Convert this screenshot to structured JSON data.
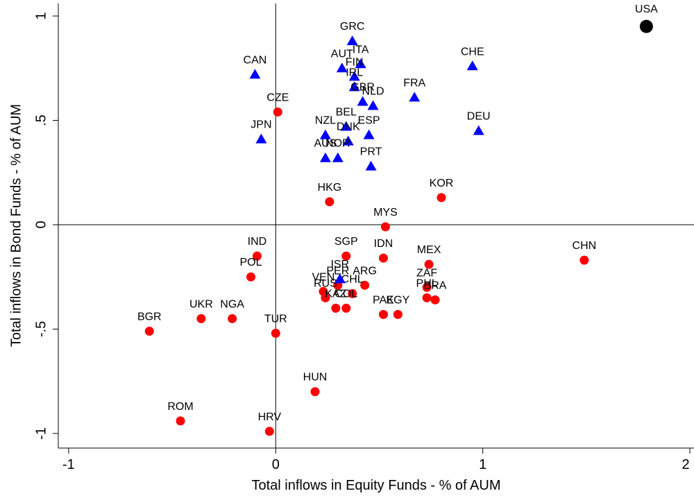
{
  "chart_data": {
    "type": "scatter",
    "x_label": "Total inflows in Equity Funds  - % of AUM",
    "y_label": "Total inflows in Bond Funds - % of AUM",
    "xlim": [
      -1.05,
      2.02
    ],
    "ylim": [
      -1.07,
      1.06
    ],
    "xticks": [
      -1,
      0,
      1,
      2
    ],
    "yticks": [
      {
        "value": -1,
        "label": "-1"
      },
      {
        "value": -0.5,
        "label": "-.5"
      },
      0,
      {
        "value": 0.5,
        "label": ".5"
      },
      1
    ],
    "reference_lines": {
      "x": 0,
      "y": 0
    },
    "series": [
      {
        "color": "#ff0000",
        "marker": "circle",
        "labels": [
          "CZE",
          "HKG",
          "KOR",
          "MYS",
          "IND",
          "SGP",
          "IDN",
          "MEX",
          "CHN",
          "POL",
          "ZAF",
          "PHL",
          "BRA",
          "ARG",
          "PER",
          "CHL",
          "VEN",
          "RUS",
          "KAZ",
          "COL",
          "PAK",
          "EGY",
          "BGR",
          "UKR",
          "NGA",
          "TUR",
          "HUN",
          "ROM",
          "HRV"
        ],
        "x": [
          0.01,
          0.26,
          0.8,
          0.53,
          -0.09,
          0.34,
          0.52,
          0.74,
          1.49,
          -0.12,
          0.73,
          0.73,
          0.77,
          0.43,
          0.3,
          0.37,
          0.23,
          0.24,
          0.29,
          0.34,
          0.52,
          0.59,
          -0.61,
          -0.36,
          -0.21,
          0.0,
          0.19,
          -0.46,
          -0.03
        ],
        "y": [
          0.54,
          0.11,
          0.13,
          -0.01,
          -0.15,
          -0.15,
          -0.16,
          -0.19,
          -0.17,
          -0.25,
          -0.3,
          -0.35,
          -0.36,
          -0.29,
          -0.29,
          -0.33,
          -0.32,
          -0.35,
          -0.4,
          -0.4,
          -0.43,
          -0.43,
          -0.51,
          -0.45,
          -0.45,
          -0.52,
          -0.8,
          -0.94,
          -0.99
        ]
      },
      {
        "color": "#0000ff",
        "marker": "triangle",
        "labels": [
          "GRC",
          "ITA",
          "AUT",
          "FIN",
          "IRL",
          "GBR",
          "NLD",
          "CHE",
          "FRA",
          "DEU",
          "BEL",
          "NZL",
          "ESP",
          "DNK",
          "JPN",
          "AUS",
          "NOR",
          "PRT",
          "CAN",
          "ISR"
        ],
        "x": [
          0.37,
          0.41,
          0.32,
          0.38,
          0.38,
          0.42,
          0.47,
          0.95,
          0.67,
          0.98,
          0.34,
          0.24,
          0.45,
          0.35,
          -0.07,
          0.24,
          0.3,
          0.46,
          -0.1,
          0.31
        ],
        "y": [
          0.88,
          0.77,
          0.75,
          0.71,
          0.66,
          0.59,
          0.57,
          0.76,
          0.61,
          0.45,
          0.47,
          0.43,
          0.43,
          0.4,
          0.41,
          0.32,
          0.32,
          0.28,
          0.72,
          -0.26
        ]
      },
      {
        "color": "#000000",
        "marker": "big-circle",
        "labels": [
          "USA"
        ],
        "x": [
          1.79
        ],
        "y": [
          0.95
        ]
      }
    ]
  }
}
